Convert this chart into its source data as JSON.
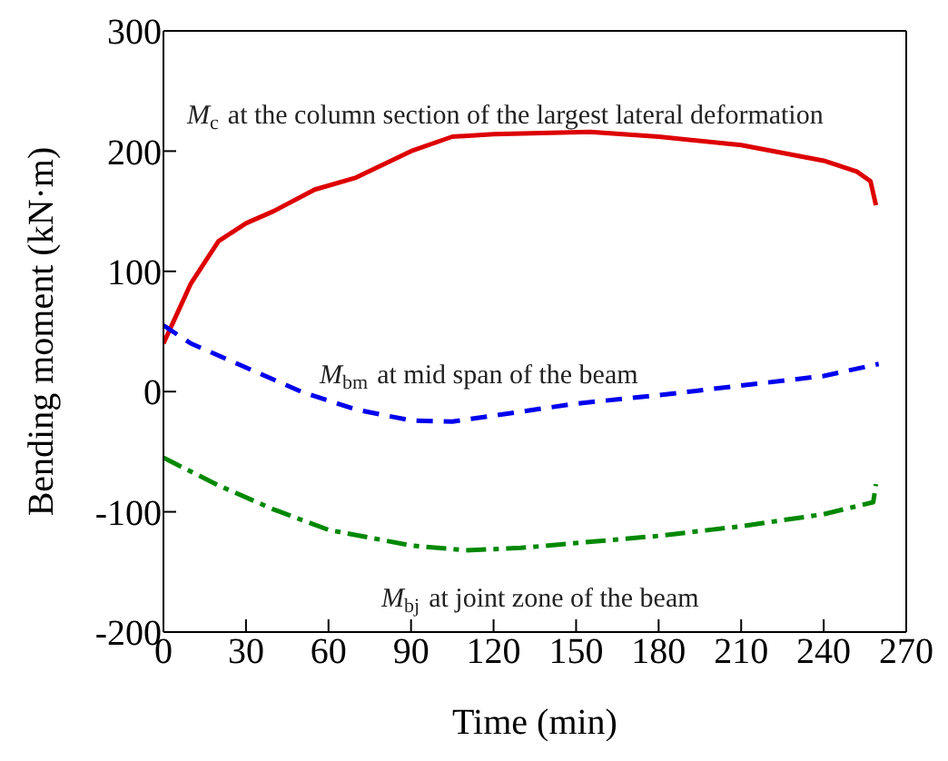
{
  "chart_data": {
    "type": "line",
    "xlabel": "Time (min)",
    "ylabel": "Bending moment (kN·m)",
    "xlim": [
      0,
      270
    ],
    "xticks": [
      0,
      30,
      60,
      90,
      120,
      150,
      180,
      210,
      240,
      270
    ],
    "ylim": [
      -200,
      300
    ],
    "yticks": [
      -200,
      -100,
      0,
      100,
      200,
      300
    ],
    "marker": "none",
    "series": [
      {
        "color": "#dd0000",
        "line_style": "solid",
        "x": [
          0,
          5,
          10,
          20,
          30,
          40,
          55,
          70,
          90,
          105,
          120,
          155,
          180,
          210,
          240,
          252,
          257,
          259
        ],
        "values": [
          40,
          65,
          90,
          125,
          140,
          150,
          168,
          178,
          200,
          212,
          214,
          216,
          212,
          205,
          192,
          183,
          175,
          155
        ]
      },
      {
        "color": "#0000ee",
        "line_style": "dashed",
        "x": [
          0,
          10,
          30,
          50,
          70,
          90,
          105,
          120,
          150,
          180,
          210,
          240,
          260
        ],
        "values": [
          55,
          40,
          20,
          0,
          -15,
          -24,
          -25,
          -20,
          -10,
          -3,
          5,
          13,
          23
        ]
      },
      {
        "color": "#008800",
        "line_style": "dashdot",
        "x": [
          0,
          20,
          40,
          60,
          90,
          110,
          130,
          180,
          210,
          240,
          258,
          259
        ],
        "values": [
          -55,
          -78,
          -98,
          -115,
          -128,
          -132,
          -130,
          -120,
          -112,
          -102,
          -92,
          -77
        ]
      }
    ],
    "annotations": [
      "M$_{c}$ at the column section of the largest lateral deformation",
      "M$_{bm}$ at mid span of the beam",
      "M$_{bj}$ at joint zone of the beam"
    ]
  }
}
